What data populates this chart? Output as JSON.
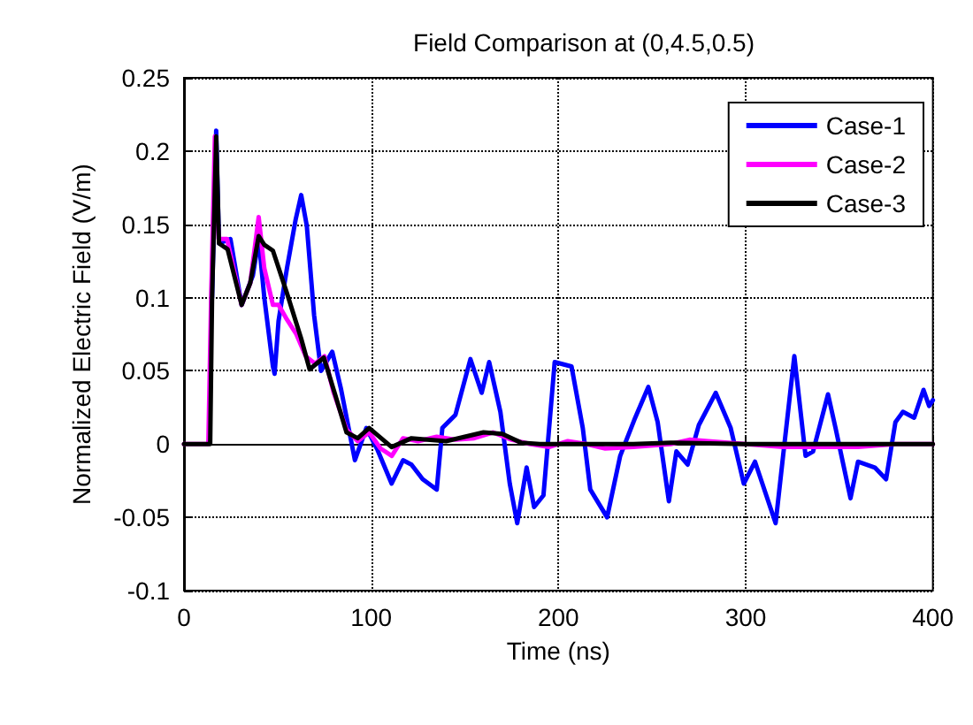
{
  "chart_data": {
    "type": "line",
    "title": "Field Comparison at (0,4.5,0.5)",
    "xlabel": "Time (ns)",
    "ylabel": "Normalized Electric Field (V/m)",
    "xlim": [
      0,
      400
    ],
    "xticks": [
      0,
      100,
      200,
      300,
      400
    ],
    "ylim": [
      -0.1,
      0.25
    ],
    "yticks": [
      -0.1,
      -0.05,
      0,
      0.05,
      0.1,
      0.15,
      0.2,
      0.25
    ],
    "grid": true,
    "legend": "top right",
    "line_style": "solid",
    "marker": "none",
    "series": [
      {
        "name": "Case-1",
        "color": "#0000ff",
        "x": [
          15,
          17.2,
          18.7,
          24.8,
          30.8,
          36.8,
          39.9,
          42.9,
          47.5,
          48.4,
          50.5,
          55,
          59.6,
          62.6,
          65.6,
          69.5,
          73.2,
          79.2,
          83.8,
          91.3,
          97.4,
          103.4,
          110.9,
          117,
          121.5,
          127.5,
          135,
          138,
          145,
          153,
          159,
          163,
          169,
          174,
          178,
          183,
          187,
          192,
          198,
          207,
          213,
          217,
          226,
          233,
          241,
          248,
          253,
          259,
          263,
          269,
          275,
          284,
          292,
          299,
          305,
          316,
          320,
          326,
          332,
          336,
          344,
          348,
          356,
          360,
          369,
          375,
          380,
          384,
          390,
          395,
          398,
          400
        ],
        "values": [
          0.1,
          0.214,
          0.137,
          0.14,
          0.095,
          0.115,
          0.14,
          0.1,
          0.053,
          0.048,
          0.084,
          0.12,
          0.153,
          0.17,
          0.149,
          0.088,
          0.05,
          0.063,
          0.038,
          -0.011,
          0.011,
          -0.004,
          -0.027,
          -0.011,
          -0.014,
          -0.024,
          -0.031,
          0.011,
          0.02,
          0.058,
          0.035,
          0.056,
          0.022,
          -0.027,
          -0.054,
          -0.016,
          -0.043,
          -0.035,
          0.056,
          0.053,
          0.011,
          -0.031,
          -0.05,
          -0.008,
          0.018,
          0.039,
          0.015,
          -0.039,
          -0.005,
          -0.014,
          0.013,
          0.035,
          0.011,
          -0.027,
          -0.012,
          -0.054,
          -0.008,
          0.06,
          -0.008,
          -0.005,
          0.034,
          0.011,
          -0.037,
          -0.012,
          -0.016,
          -0.024,
          0.015,
          0.022,
          0.018,
          0.037,
          0.026,
          0.03
        ]
      },
      {
        "name": "Case-2",
        "color": "#ff00ff",
        "x": [
          0,
          13,
          14.5,
          16.5,
          18.5,
          23,
          30.8,
          35.4,
          39.9,
          42.9,
          47.5,
          50.5,
          55,
          60,
          65,
          70,
          75,
          80,
          86.8,
          92.8,
          98.9,
          105,
          111,
          117,
          125,
          135,
          145,
          155,
          165,
          175,
          185,
          195,
          205,
          215,
          225,
          240,
          260,
          270,
          280,
          300,
          320,
          340,
          360,
          380,
          400
        ],
        "values": [
          0,
          0,
          0.1,
          0.21,
          0.14,
          0.14,
          0.095,
          0.11,
          0.155,
          0.12,
          0.095,
          0.095,
          0.085,
          0.075,
          0.06,
          0.055,
          0.06,
          0.035,
          0.01,
          0.002,
          0.008,
          -0.003,
          -0.008,
          0.004,
          0.002,
          0.005,
          0.003,
          0.004,
          0.008,
          0.003,
          0,
          -0.002,
          0.002,
          0,
          -0.003,
          -0.002,
          0,
          0.003,
          0.002,
          0,
          -0.002,
          -0.002,
          -0.002,
          0,
          0
        ]
      },
      {
        "name": "Case-3",
        "color": "#000000",
        "x": [
          0,
          14,
          15,
          17.2,
          18.7,
          23.3,
          30.8,
          35.4,
          39.9,
          42.9,
          47.5,
          55,
          62.6,
          67.1,
          74.7,
          80.7,
          86.8,
          92.8,
          98.9,
          110.9,
          121.5,
          130,
          140,
          150,
          160,
          170,
          180,
          190,
          200,
          220,
          240,
          260,
          300,
          350,
          400
        ],
        "values": [
          0,
          0,
          0.1,
          0.21,
          0.137,
          0.133,
          0.095,
          0.11,
          0.142,
          0.136,
          0.132,
          0.103,
          0.072,
          0.051,
          0.059,
          0.034,
          0.008,
          0.004,
          0.011,
          -0.002,
          0.004,
          0.003,
          0.002,
          0.005,
          0.008,
          0.007,
          0.001,
          0,
          0,
          0,
          0,
          0.001,
          0,
          0,
          0
        ]
      }
    ]
  }
}
